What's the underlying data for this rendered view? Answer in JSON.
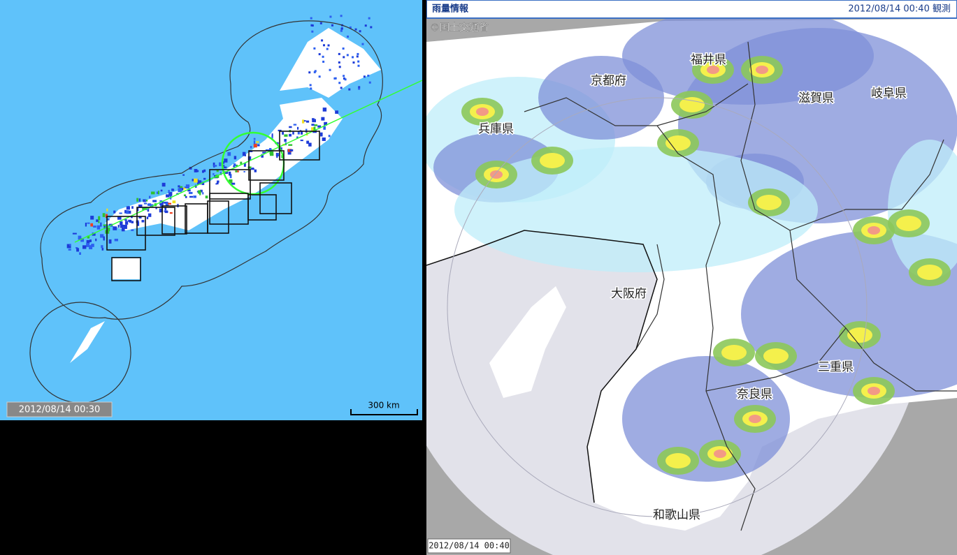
{
  "left_map": {
    "timestamp": "2012/08/14 00:30",
    "scale_label": "300 km"
  },
  "right_map": {
    "header": {
      "title": "雨量情報",
      "observed": "2012/08/14 00:40 観測"
    },
    "copyright": "©国土交通省",
    "labels": [
      "福井県",
      "京都府",
      "滋賀県",
      "岐阜県",
      "兵庫県",
      "大阪府",
      "三重県",
      "奈良県",
      "和歌山県"
    ],
    "timestamp": "2012/08/14 00:40"
  }
}
